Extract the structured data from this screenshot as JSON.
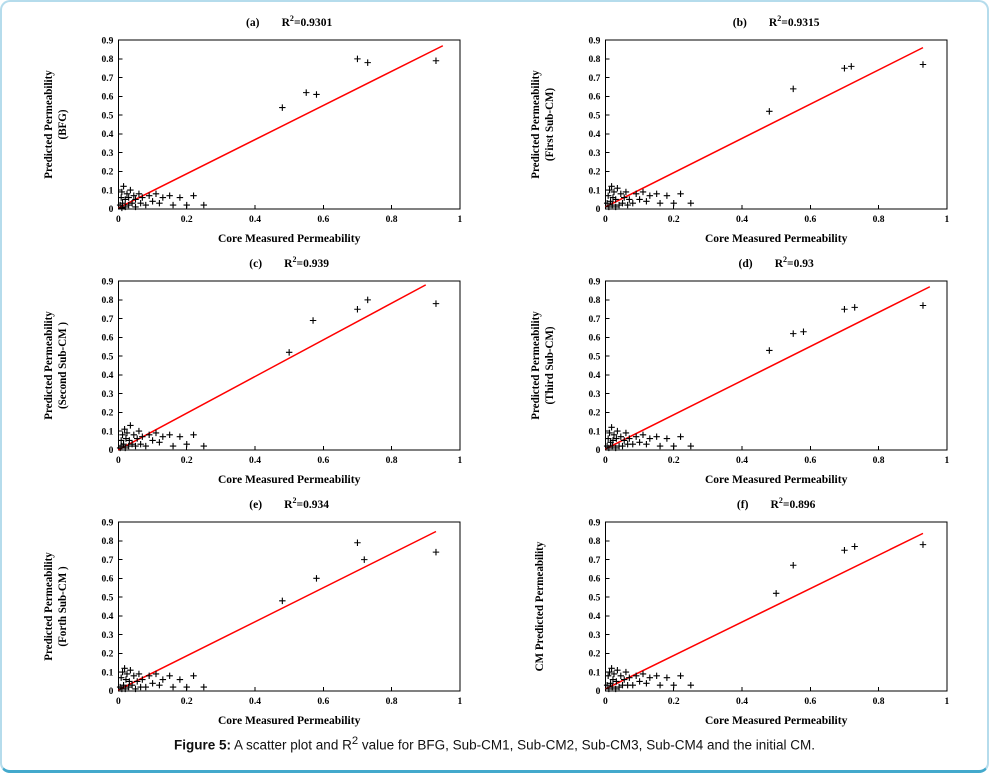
{
  "figure": {
    "caption": {
      "prefix": "Figure 5:",
      "before_sup": " A scatter plot and R",
      "sup": "2",
      "after_sup": " value for BFG, Sub-CM1, Sub-CM2, Sub-CM3, Sub-CM4 and the initial CM."
    }
  },
  "colors": {
    "fit_line": "#ff0000",
    "marker": "#000000",
    "axis": "#000000",
    "frame_border": "#43a9cc"
  },
  "chart_data": [
    {
      "type": "scatter",
      "panel_label": "(a)",
      "r2_prefix": "R",
      "r2_sup": "2",
      "r2_value": "=0.9301",
      "xlabel": "Core Measured Permeability",
      "ylabel_line1": "Predicted Permeability",
      "ylabel_line2": "(BFG)",
      "xlim": [
        0,
        1
      ],
      "ylim": [
        0,
        0.9
      ],
      "xticks": [
        0,
        0.2,
        0.4,
        0.6,
        0.8,
        1
      ],
      "yticks": [
        0,
        0.1,
        0.2,
        0.3,
        0.4,
        0.5,
        0.6,
        0.7,
        0.8,
        0.9
      ],
      "fit_line": {
        "x1": 0,
        "y1": 0.005,
        "x2": 0.95,
        "y2": 0.87
      },
      "points": [
        [
          0.005,
          0.02
        ],
        [
          0.008,
          0.06
        ],
        [
          0.01,
          0.005
        ],
        [
          0.01,
          0.09
        ],
        [
          0.012,
          0.03
        ],
        [
          0.015,
          0.12
        ],
        [
          0.02,
          0.01
        ],
        [
          0.02,
          0.05
        ],
        [
          0.025,
          0.08
        ],
        [
          0.03,
          0.02
        ],
        [
          0.03,
          0.06
        ],
        [
          0.035,
          0.1
        ],
        [
          0.04,
          0.03
        ],
        [
          0.045,
          0.07
        ],
        [
          0.05,
          0.01
        ],
        [
          0.05,
          0.05
        ],
        [
          0.06,
          0.08
        ],
        [
          0.065,
          0.03
        ],
        [
          0.07,
          0.06
        ],
        [
          0.08,
          0.02
        ],
        [
          0.09,
          0.07
        ],
        [
          0.1,
          0.04
        ],
        [
          0.11,
          0.08
        ],
        [
          0.12,
          0.03
        ],
        [
          0.13,
          0.06
        ],
        [
          0.15,
          0.07
        ],
        [
          0.16,
          0.02
        ],
        [
          0.18,
          0.06
        ],
        [
          0.2,
          0.02
        ],
        [
          0.22,
          0.07
        ],
        [
          0.25,
          0.02
        ],
        [
          0.48,
          0.54
        ],
        [
          0.55,
          0.62
        ],
        [
          0.58,
          0.61
        ],
        [
          0.7,
          0.8
        ],
        [
          0.73,
          0.78
        ],
        [
          0.93,
          0.79
        ]
      ]
    },
    {
      "type": "scatter",
      "panel_label": "(b)",
      "r2_prefix": "R",
      "r2_sup": "2",
      "r2_value": "=0.9315",
      "xlabel": "Core Measured Permeability",
      "ylabel_line1": "Predicted Permeability",
      "ylabel_line2": "(First Sub-CM)",
      "xlim": [
        0,
        1
      ],
      "ylim": [
        0,
        0.9
      ],
      "xticks": [
        0,
        0.2,
        0.4,
        0.6,
        0.8,
        1
      ],
      "yticks": [
        0,
        0.1,
        0.2,
        0.3,
        0.4,
        0.5,
        0.6,
        0.7,
        0.8,
        0.9
      ],
      "fit_line": {
        "x1": 0,
        "y1": 0.01,
        "x2": 0.93,
        "y2": 0.86
      },
      "points": [
        [
          0.005,
          0.03
        ],
        [
          0.008,
          0.07
        ],
        [
          0.01,
          0.01
        ],
        [
          0.012,
          0.1
        ],
        [
          0.015,
          0.04
        ],
        [
          0.018,
          0.12
        ],
        [
          0.02,
          0.02
        ],
        [
          0.022,
          0.06
        ],
        [
          0.025,
          0.09
        ],
        [
          0.03,
          0.01
        ],
        [
          0.03,
          0.05
        ],
        [
          0.035,
          0.11
        ],
        [
          0.04,
          0.02
        ],
        [
          0.045,
          0.08
        ],
        [
          0.05,
          0.03
        ],
        [
          0.055,
          0.06
        ],
        [
          0.06,
          0.09
        ],
        [
          0.065,
          0.02
        ],
        [
          0.07,
          0.05
        ],
        [
          0.08,
          0.03
        ],
        [
          0.09,
          0.08
        ],
        [
          0.1,
          0.05
        ],
        [
          0.11,
          0.09
        ],
        [
          0.12,
          0.04
        ],
        [
          0.13,
          0.07
        ],
        [
          0.15,
          0.08
        ],
        [
          0.16,
          0.03
        ],
        [
          0.18,
          0.07
        ],
        [
          0.2,
          0.03
        ],
        [
          0.22,
          0.08
        ],
        [
          0.25,
          0.03
        ],
        [
          0.48,
          0.52
        ],
        [
          0.55,
          0.64
        ],
        [
          0.7,
          0.75
        ],
        [
          0.72,
          0.76
        ],
        [
          0.93,
          0.77
        ]
      ]
    },
    {
      "type": "scatter",
      "panel_label": "(c)",
      "r2_prefix": "R",
      "r2_sup": "2",
      "r2_value": "=0.939",
      "xlabel": "Core Measured Permeability",
      "ylabel_line1": "Predicted Permeability",
      "ylabel_line2": "(Second Sub-CM )",
      "xlim": [
        0,
        1
      ],
      "ylim": [
        0,
        0.9
      ],
      "xticks": [
        0,
        0.2,
        0.4,
        0.6,
        0.8,
        1
      ],
      "yticks": [
        0,
        0.1,
        0.2,
        0.3,
        0.4,
        0.5,
        0.6,
        0.7,
        0.8,
        0.9
      ],
      "fit_line": {
        "x1": 0,
        "y1": 0.0,
        "x2": 0.9,
        "y2": 0.88
      },
      "points": [
        [
          0.005,
          0.01
        ],
        [
          0.008,
          0.05
        ],
        [
          0.01,
          0.02
        ],
        [
          0.012,
          0.08
        ],
        [
          0.015,
          0.03
        ],
        [
          0.018,
          0.11
        ],
        [
          0.02,
          0.01
        ],
        [
          0.022,
          0.06
        ],
        [
          0.025,
          0.09
        ],
        [
          0.03,
          0.02
        ],
        [
          0.032,
          0.05
        ],
        [
          0.035,
          0.13
        ],
        [
          0.04,
          0.03
        ],
        [
          0.045,
          0.08
        ],
        [
          0.05,
          0.02
        ],
        [
          0.055,
          0.06
        ],
        [
          0.06,
          0.1
        ],
        [
          0.065,
          0.03
        ],
        [
          0.07,
          0.07
        ],
        [
          0.08,
          0.02
        ],
        [
          0.09,
          0.08
        ],
        [
          0.1,
          0.05
        ],
        [
          0.11,
          0.09
        ],
        [
          0.12,
          0.04
        ],
        [
          0.13,
          0.07
        ],
        [
          0.15,
          0.08
        ],
        [
          0.16,
          0.02
        ],
        [
          0.18,
          0.07
        ],
        [
          0.2,
          0.03
        ],
        [
          0.22,
          0.08
        ],
        [
          0.25,
          0.02
        ],
        [
          0.5,
          0.52
        ],
        [
          0.57,
          0.69
        ],
        [
          0.7,
          0.75
        ],
        [
          0.73,
          0.8
        ],
        [
          0.93,
          0.78
        ]
      ]
    },
    {
      "type": "scatter",
      "panel_label": "(d)",
      "r2_prefix": "R",
      "r2_sup": "2",
      "r2_value": "=0.93",
      "xlabel": "Core Measured Permeability",
      "ylabel_line1": "Predicted Permeability",
      "ylabel_line2": "(Third Sub-CM)",
      "xlim": [
        0,
        1
      ],
      "ylim": [
        0,
        0.9
      ],
      "xticks": [
        0,
        0.2,
        0.4,
        0.6,
        0.8,
        1
      ],
      "yticks": [
        0,
        0.1,
        0.2,
        0.3,
        0.4,
        0.5,
        0.6,
        0.7,
        0.8,
        0.9
      ],
      "fit_line": {
        "x1": 0,
        "y1": 0.005,
        "x2": 0.95,
        "y2": 0.87
      },
      "points": [
        [
          0.005,
          0.02
        ],
        [
          0.008,
          0.06
        ],
        [
          0.01,
          0.01
        ],
        [
          0.012,
          0.09
        ],
        [
          0.015,
          0.04
        ],
        [
          0.018,
          0.12
        ],
        [
          0.02,
          0.02
        ],
        [
          0.022,
          0.05
        ],
        [
          0.025,
          0.08
        ],
        [
          0.03,
          0.01
        ],
        [
          0.032,
          0.06
        ],
        [
          0.035,
          0.1
        ],
        [
          0.04,
          0.02
        ],
        [
          0.045,
          0.07
        ],
        [
          0.05,
          0.02
        ],
        [
          0.055,
          0.05
        ],
        [
          0.06,
          0.09
        ],
        [
          0.065,
          0.03
        ],
        [
          0.07,
          0.06
        ],
        [
          0.08,
          0.03
        ],
        [
          0.09,
          0.07
        ],
        [
          0.1,
          0.04
        ],
        [
          0.11,
          0.08
        ],
        [
          0.12,
          0.03
        ],
        [
          0.13,
          0.06
        ],
        [
          0.15,
          0.07
        ],
        [
          0.16,
          0.02
        ],
        [
          0.18,
          0.06
        ],
        [
          0.2,
          0.02
        ],
        [
          0.22,
          0.07
        ],
        [
          0.25,
          0.02
        ],
        [
          0.48,
          0.53
        ],
        [
          0.55,
          0.62
        ],
        [
          0.58,
          0.63
        ],
        [
          0.7,
          0.75
        ],
        [
          0.73,
          0.76
        ],
        [
          0.93,
          0.77
        ]
      ]
    },
    {
      "type": "scatter",
      "panel_label": "(e)",
      "r2_prefix": "R",
      "r2_sup": "2",
      "r2_value": "=0.934",
      "xlabel": "Core Measured Permeability",
      "ylabel_line1": "Predicted Permeability",
      "ylabel_line2": "(Forth Sub-CM )",
      "xlim": [
        0,
        1
      ],
      "ylim": [
        0,
        0.9
      ],
      "xticks": [
        0,
        0.2,
        0.4,
        0.6,
        0.8,
        1
      ],
      "yticks": [
        0,
        0.1,
        0.2,
        0.3,
        0.4,
        0.5,
        0.6,
        0.7,
        0.8,
        0.9
      ],
      "fit_line": {
        "x1": 0,
        "y1": 0.005,
        "x2": 0.93,
        "y2": 0.85
      },
      "points": [
        [
          0.005,
          0.02
        ],
        [
          0.008,
          0.07
        ],
        [
          0.01,
          0.01
        ],
        [
          0.012,
          0.1
        ],
        [
          0.015,
          0.03
        ],
        [
          0.018,
          0.12
        ],
        [
          0.02,
          0.01
        ],
        [
          0.022,
          0.06
        ],
        [
          0.025,
          0.09
        ],
        [
          0.03,
          0.02
        ],
        [
          0.032,
          0.05
        ],
        [
          0.035,
          0.11
        ],
        [
          0.04,
          0.03
        ],
        [
          0.045,
          0.08
        ],
        [
          0.05,
          0.01
        ],
        [
          0.055,
          0.05
        ],
        [
          0.06,
          0.09
        ],
        [
          0.065,
          0.02
        ],
        [
          0.07,
          0.06
        ],
        [
          0.08,
          0.02
        ],
        [
          0.09,
          0.08
        ],
        [
          0.1,
          0.04
        ],
        [
          0.11,
          0.09
        ],
        [
          0.12,
          0.03
        ],
        [
          0.13,
          0.06
        ],
        [
          0.15,
          0.08
        ],
        [
          0.16,
          0.02
        ],
        [
          0.18,
          0.06
        ],
        [
          0.2,
          0.02
        ],
        [
          0.22,
          0.08
        ],
        [
          0.25,
          0.02
        ],
        [
          0.48,
          0.48
        ],
        [
          0.58,
          0.6
        ],
        [
          0.7,
          0.79
        ],
        [
          0.72,
          0.7
        ],
        [
          0.93,
          0.74
        ]
      ]
    },
    {
      "type": "scatter",
      "panel_label": "(f)",
      "r2_prefix": "R",
      "r2_sup": "2",
      "r2_value": "=0.896",
      "xlabel": "Core Measured Permeability",
      "ylabel_line1": "CM Predicted Permeability",
      "ylabel_line2": "",
      "xlim": [
        0,
        1
      ],
      "ylim": [
        0,
        0.9
      ],
      "xticks": [
        0,
        0.2,
        0.4,
        0.6,
        0.8,
        1
      ],
      "yticks": [
        0,
        0.1,
        0.2,
        0.3,
        0.4,
        0.5,
        0.6,
        0.7,
        0.8,
        0.9
      ],
      "fit_line": {
        "x1": 0,
        "y1": 0.01,
        "x2": 0.93,
        "y2": 0.84
      },
      "points": [
        [
          0.005,
          0.03
        ],
        [
          0.008,
          0.08
        ],
        [
          0.01,
          0.01
        ],
        [
          0.012,
          0.1
        ],
        [
          0.015,
          0.04
        ],
        [
          0.018,
          0.12
        ],
        [
          0.02,
          0.02
        ],
        [
          0.022,
          0.06
        ],
        [
          0.025,
          0.09
        ],
        [
          0.03,
          0.01
        ],
        [
          0.032,
          0.05
        ],
        [
          0.035,
          0.11
        ],
        [
          0.04,
          0.02
        ],
        [
          0.045,
          0.08
        ],
        [
          0.05,
          0.03
        ],
        [
          0.055,
          0.06
        ],
        [
          0.06,
          0.1
        ],
        [
          0.065,
          0.03
        ],
        [
          0.07,
          0.07
        ],
        [
          0.08,
          0.03
        ],
        [
          0.09,
          0.08
        ],
        [
          0.1,
          0.05
        ],
        [
          0.11,
          0.09
        ],
        [
          0.12,
          0.04
        ],
        [
          0.13,
          0.07
        ],
        [
          0.15,
          0.08
        ],
        [
          0.16,
          0.03
        ],
        [
          0.18,
          0.07
        ],
        [
          0.2,
          0.03
        ],
        [
          0.22,
          0.08
        ],
        [
          0.25,
          0.03
        ],
        [
          0.5,
          0.52
        ],
        [
          0.55,
          0.67
        ],
        [
          0.7,
          0.75
        ],
        [
          0.73,
          0.77
        ],
        [
          0.93,
          0.78
        ]
      ]
    }
  ]
}
